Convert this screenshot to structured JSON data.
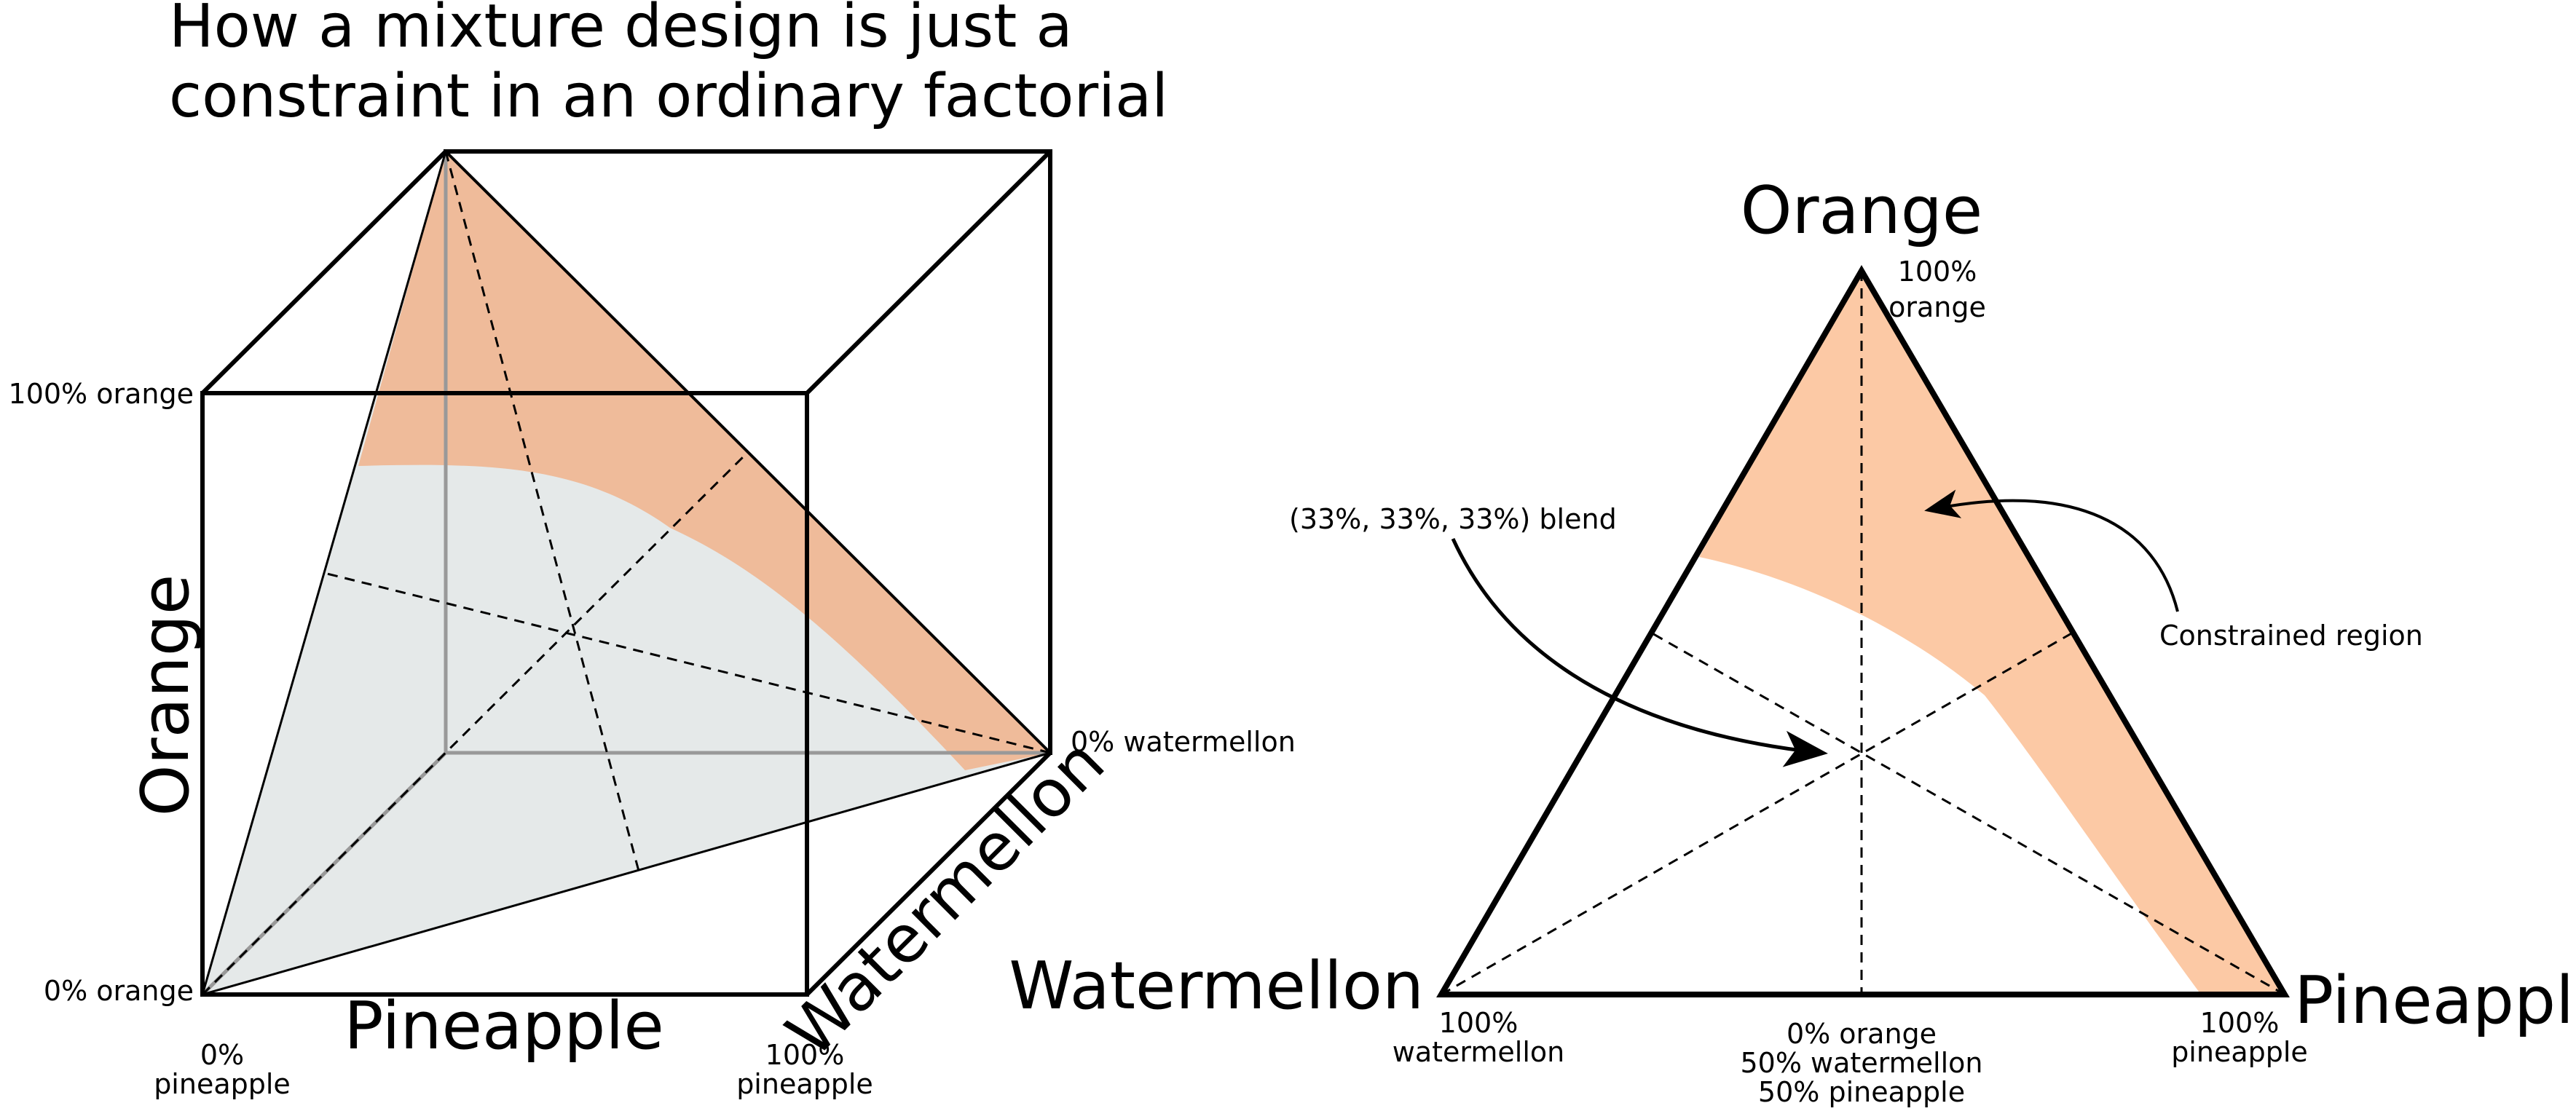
{
  "title": {
    "line1": "How a mixture design is just a",
    "line2": "constraint in an ordinary factorial"
  },
  "cube": {
    "axis_orange": "Orange",
    "axis_pineapple": "Pineapple",
    "axis_watermellon": "Watermellon",
    "label_100_orange": "100% orange",
    "label_0_orange": "0% orange",
    "label_0_watermellon": "0% watermellon",
    "label_0_pineapple_line1": "0%",
    "label_0_pineapple_line2": "pineapple",
    "label_100_pineapple_line1": "100%",
    "label_100_pineapple_line2": "pineapple"
  },
  "triangle": {
    "vertex_orange": "Orange",
    "vertex_watermellon": "Watermellon",
    "vertex_pineapple": "Pineapple",
    "label_100_orange_line1": "100%",
    "label_100_orange_line2": "orange",
    "label_100_watermellon_line1": "100%",
    "label_100_watermellon_line2": "watermellon",
    "label_100_pineapple_line1": "100%",
    "label_100_pineapple_line2": "pineapple",
    "label_mid_line1": "0% orange",
    "label_mid_line2": "50% watermellon",
    "label_mid_line3": "50% pineapple",
    "annotation_blend": "(33%, 33%, 33%) blend",
    "annotation_constrained": "Constrained region"
  },
  "colors": {
    "constrained_region": "#fcc9a5",
    "constrained_region_cube": "#efbb9a",
    "unconstrained_region_cube": "#e5e9e9",
    "hidden_edge": "#999999",
    "line": "#000000"
  }
}
